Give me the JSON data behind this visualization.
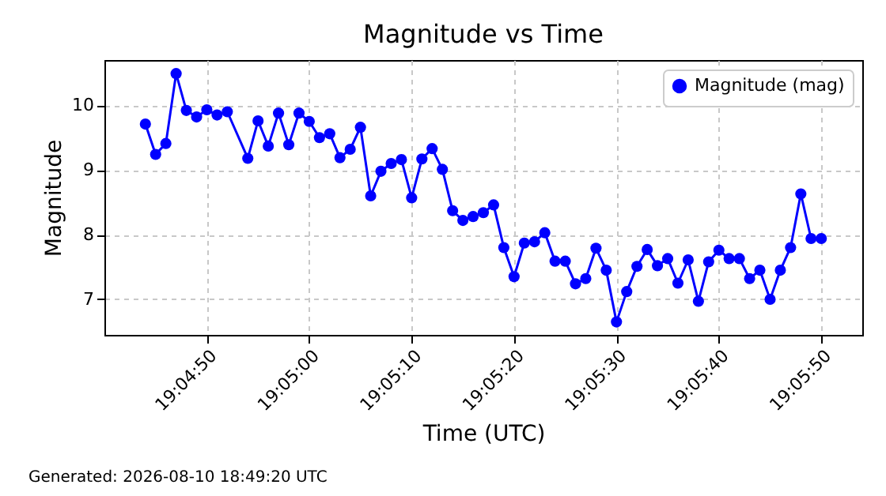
{
  "chart_data": {
    "type": "line",
    "title": "Magnitude vs Time",
    "xlabel": "Time (UTC)",
    "ylabel": "Magnitude",
    "annotations": [
      "Generated: 2026-08-10 18:49:20 UTC"
    ],
    "x": [
      "2026-08-10T19:04:44",
      "2026-08-10T19:04:45",
      "2026-08-10T19:04:46",
      "2026-08-10T19:04:47",
      "2026-08-10T19:04:48",
      "2026-08-10T19:04:49",
      "2026-08-10T19:04:50",
      "2026-08-10T19:04:51",
      "2026-08-10T19:04:52",
      "2026-08-10T19:04:54",
      "2026-08-10T19:04:55",
      "2026-08-10T19:04:56",
      "2026-08-10T19:04:57",
      "2026-08-10T19:04:58",
      "2026-08-10T19:04:59",
      "2026-08-10T19:05:00",
      "2026-08-10T19:05:01",
      "2026-08-10T19:05:02",
      "2026-08-10T19:05:03",
      "2026-08-10T19:05:04",
      "2026-08-10T19:05:05",
      "2026-08-10T19:05:06",
      "2026-08-10T19:05:07",
      "2026-08-10T19:05:08",
      "2026-08-10T19:05:09",
      "2026-08-10T19:05:10",
      "2026-08-10T19:05:11",
      "2026-08-10T19:05:12",
      "2026-08-10T19:05:13",
      "2026-08-10T19:05:14",
      "2026-08-10T19:05:15",
      "2026-08-10T19:05:16",
      "2026-08-10T19:05:17",
      "2026-08-10T19:05:18",
      "2026-08-10T19:05:19",
      "2026-08-10T19:05:20",
      "2026-08-10T19:05:21",
      "2026-08-10T19:05:22",
      "2026-08-10T19:05:23",
      "2026-08-10T19:05:24",
      "2026-08-10T19:05:25",
      "2026-08-10T19:05:26",
      "2026-08-10T19:05:27",
      "2026-08-10T19:05:28",
      "2026-08-10T19:05:29",
      "2026-08-10T19:05:30",
      "2026-08-10T19:05:31",
      "2026-08-10T19:05:32",
      "2026-08-10T19:05:33",
      "2026-08-10T19:05:34",
      "2026-08-10T19:05:35",
      "2026-08-10T19:05:36",
      "2026-08-10T19:05:37",
      "2026-08-10T19:05:38",
      "2026-08-10T19:05:39",
      "2026-08-10T19:05:40",
      "2026-08-10T19:05:41",
      "2026-08-10T19:05:42",
      "2026-08-10T19:05:43",
      "2026-08-10T19:05:44",
      "2026-08-10T19:05:45",
      "2026-08-10T19:05:46",
      "2026-08-10T19:05:47",
      "2026-08-10T19:05:48",
      "2026-08-10T19:05:49",
      "2026-08-10T19:05:50"
    ],
    "series": [
      {
        "name": "Magnitude (mag)",
        "color": "#0000ff",
        "values": [
          9.71,
          9.24,
          9.41,
          10.49,
          9.92,
          9.82,
          9.93,
          9.85,
          9.9,
          9.18,
          9.76,
          9.37,
          9.88,
          9.39,
          9.88,
          9.75,
          9.5,
          9.56,
          9.19,
          9.32,
          9.66,
          8.6,
          8.98,
          9.1,
          9.16,
          8.57,
          9.17,
          9.33,
          9.01,
          8.37,
          8.22,
          8.28,
          8.34,
          8.46,
          7.8,
          7.35,
          7.87,
          7.89,
          8.03,
          7.59,
          7.59,
          7.24,
          7.32,
          7.79,
          7.45,
          6.65,
          7.12,
          7.51,
          7.77,
          7.52,
          7.63,
          7.25,
          7.61,
          6.97,
          7.58,
          7.76,
          7.63,
          7.63,
          7.32,
          7.45,
          7.0,
          7.45,
          7.8,
          8.63,
          7.94,
          7.94
        ]
      }
    ],
    "xlim": [
      "2026-08-10T19:04:40",
      "2026-08-10T19:05:54"
    ],
    "xticks": [
      {
        "value": "2026-08-10T19:04:50",
        "label": "19:04:50"
      },
      {
        "value": "2026-08-10T19:05:00",
        "label": "19:05:00"
      },
      {
        "value": "2026-08-10T19:05:10",
        "label": "19:05:10"
      },
      {
        "value": "2026-08-10T19:05:20",
        "label": "19:05:20"
      },
      {
        "value": "2026-08-10T19:05:30",
        "label": "19:05:30"
      },
      {
        "value": "2026-08-10T19:05:40",
        "label": "19:05:40"
      },
      {
        "value": "2026-08-10T19:05:50",
        "label": "19:05:50"
      }
    ],
    "ylim": [
      6.45,
      10.7
    ],
    "yticks": [
      7,
      8,
      9,
      10
    ],
    "grid": true,
    "legend": "top right",
    "marker": "circle",
    "line_style": "solid"
  }
}
